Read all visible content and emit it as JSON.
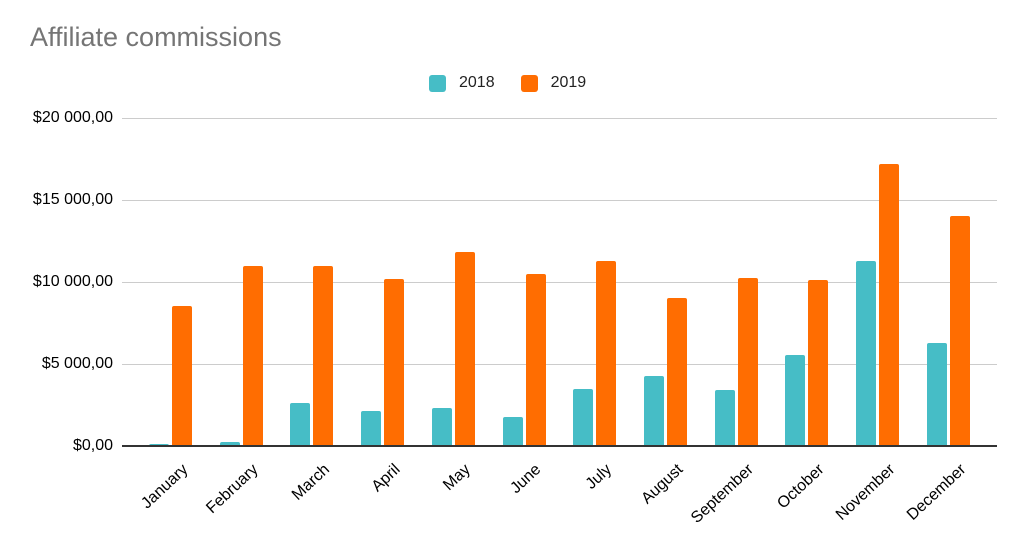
{
  "chart": {
    "title": "Affiliate commissions"
  },
  "chart_data": {
    "type": "bar",
    "title": "Affiliate commissions",
    "categories": [
      "January",
      "February",
      "March",
      "April",
      "May",
      "June",
      "July",
      "August",
      "September",
      "October",
      "November",
      "December"
    ],
    "series": [
      {
        "name": "2018",
        "color": "#46BDC6",
        "values": [
          150,
          250,
          2600,
          2150,
          2350,
          1750,
          3450,
          4300,
          3400,
          5550,
          11300,
          6300
        ]
      },
      {
        "name": "2019",
        "color": "#FF6D01",
        "values": [
          8550,
          10950,
          11000,
          10200,
          11850,
          10500,
          11300,
          9000,
          10250,
          10100,
          17200,
          14000
        ]
      }
    ],
    "xlabel": "",
    "ylabel": "",
    "ylim": [
      0,
      20000
    ],
    "ytick_step": 5000,
    "ytick_labels": [
      "$0,00",
      "$5 000,00",
      "$10 000,00",
      "$15 000,00",
      "$20 000,00"
    ],
    "grid": true,
    "legend_position": "top-center",
    "x_tick_rotation_deg": -43
  },
  "colors": {
    "title_text": "#757575",
    "axis_text": "#000000",
    "gridline": "#cccccc",
    "baseline": "#333333",
    "background": "#ffffff"
  }
}
